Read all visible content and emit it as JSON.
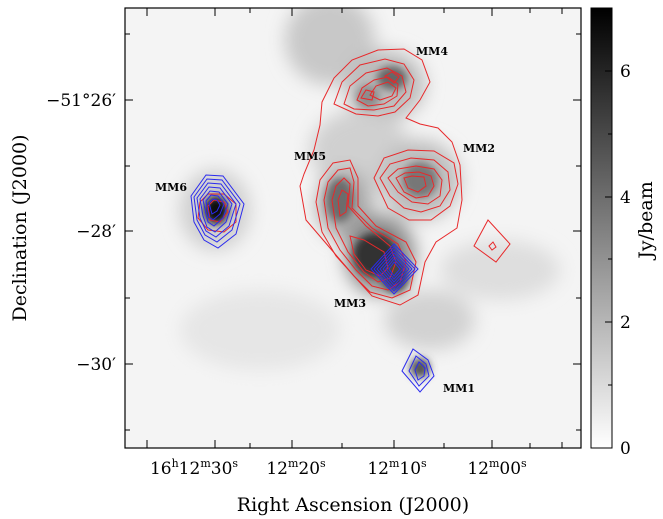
{
  "figure": {
    "xlabel": "Right Ascension (J2000)",
    "ylabel": "Declination (J2000)",
    "colorbar_label": "Jy/beam",
    "contour_colors": {
      "red": "#e8282a",
      "blue": "#2a2aee"
    }
  },
  "ra_ticks": [
    {
      "h": "16",
      "m": "12",
      "s": "30"
    },
    {
      "m": "12",
      "s": "20"
    },
    {
      "m": "12",
      "s": "10"
    },
    {
      "m": "12",
      "s": "00"
    }
  ],
  "dec_ticks": [
    {
      "label": "−51°26′"
    },
    {
      "label": "−28′"
    },
    {
      "label": "−30′"
    }
  ],
  "colorbar_ticks": [
    "0",
    "2",
    "4",
    "6"
  ],
  "sources": [
    {
      "name": "MM1"
    },
    {
      "name": "MM2"
    },
    {
      "name": "MM3"
    },
    {
      "name": "MM4"
    },
    {
      "name": "MM5"
    },
    {
      "name": "MM6"
    }
  ],
  "chart_data": {
    "type": "heatmap",
    "xlabel": "Right Ascension (J2000)",
    "ylabel": "Declination (J2000)",
    "colorbar": {
      "label": "Jy/beam",
      "range": [
        0,
        7
      ],
      "ticks": [
        0,
        2,
        4,
        6
      ],
      "colormap": "gray_r"
    },
    "x_ticks": [
      "16h12m30s",
      "12m20s",
      "12m10s",
      "12m00s"
    ],
    "y_ticks": [
      "-51°26'",
      "-28'",
      "-30'"
    ],
    "sources": [
      "MM1",
      "MM2",
      "MM3",
      "MM4",
      "MM5",
      "MM6"
    ]
  }
}
